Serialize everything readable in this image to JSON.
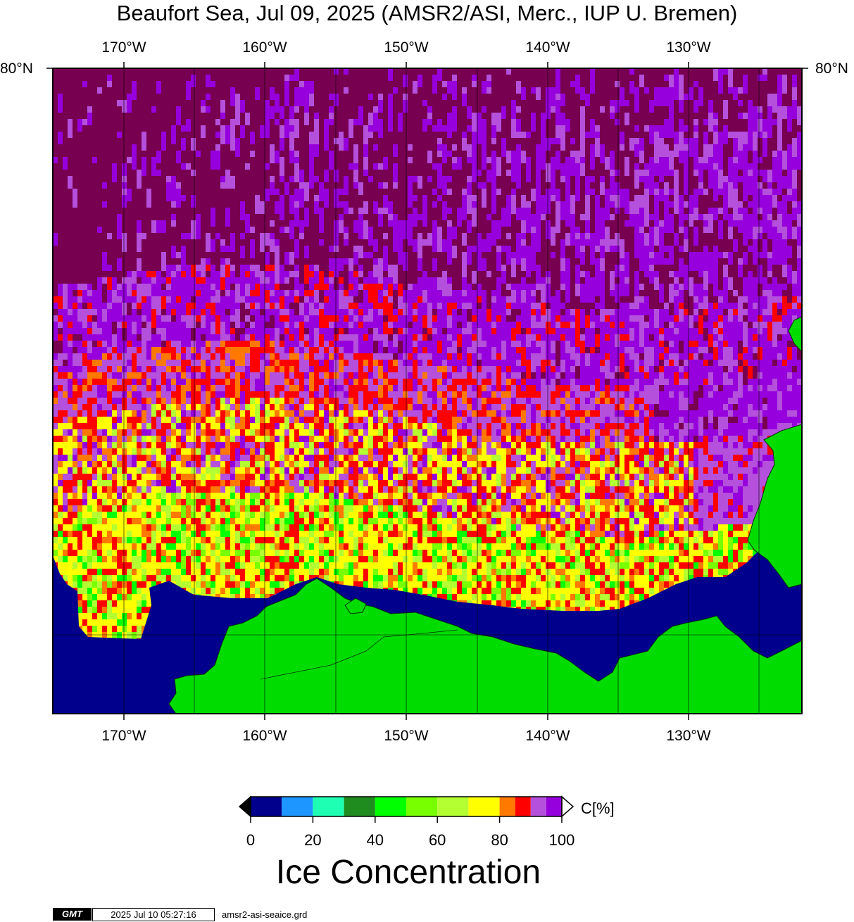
{
  "map": {
    "title": "Beaufort Sea, Jul 09, 2025 (AMSR2/ASI, Merc., IUP U. Bremen)",
    "lon_labels": [
      "170°W",
      "160°W",
      "150°W",
      "140°W",
      "130°W"
    ],
    "lat_label": "80°N",
    "colors": {
      "water_ice_free": "#00008c",
      "land": "#00dc00",
      "no_data_high": "#780050",
      "purple": "#9600dc",
      "lilac": "#b450dc",
      "red": "#ff0000",
      "orange": "#ff7800",
      "yellow": "#ffff00",
      "yellow_green": "#b4ff32",
      "light_green": "#78ff00",
      "green": "#00ff00",
      "dark_green": "#1e8c1e",
      "aquamarine": "#1effb4",
      "blue": "#1e96ff"
    }
  },
  "legend": {
    "title": "Ice Concentration",
    "unit_label": "C[%]",
    "tick_labels": [
      "0",
      "20",
      "40",
      "60",
      "80",
      "100"
    ],
    "bins": [
      {
        "from": 0,
        "to": 10,
        "color": "#00008c"
      },
      {
        "from": 10,
        "to": 20,
        "color": "#1e96ff"
      },
      {
        "from": 20,
        "to": 30,
        "color": "#1effb4"
      },
      {
        "from": 30,
        "to": 40,
        "color": "#1e8c1e"
      },
      {
        "from": 40,
        "to": 50,
        "color": "#00ff00"
      },
      {
        "from": 50,
        "to": 60,
        "color": "#78ff00"
      },
      {
        "from": 60,
        "to": 70,
        "color": "#b4ff32"
      },
      {
        "from": 70,
        "to": 80,
        "color": "#ffff00"
      },
      {
        "from": 80,
        "to": 85,
        "color": "#ff7800"
      },
      {
        "from": 85,
        "to": 90,
        "color": "#ff0000"
      },
      {
        "from": 90,
        "to": 95,
        "color": "#b450dc"
      },
      {
        "from": 95,
        "to": 100,
        "color": "#9600dc"
      }
    ]
  },
  "footer": {
    "logo_text": "GMT",
    "timestamp": "2025 Jul 10 05:27:16",
    "grid_file": "amsr2-asi-seaice.grd"
  }
}
